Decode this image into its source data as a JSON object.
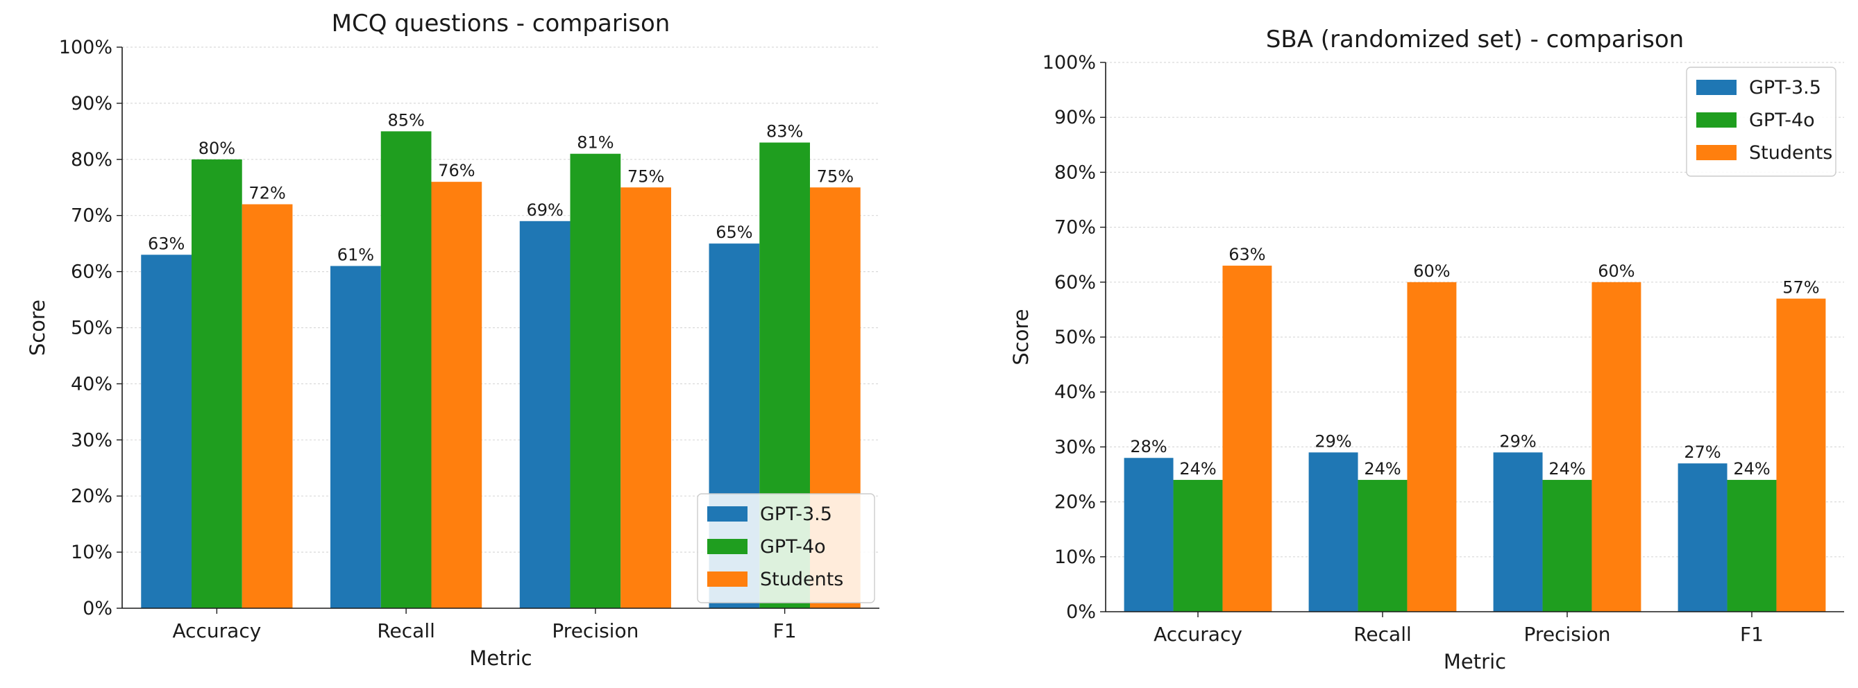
{
  "chart_data": [
    {
      "type": "bar",
      "title": "MCQ questions - comparison",
      "xlabel": "Metric",
      "ylabel": "Score",
      "categories": [
        "Accuracy",
        "Recall",
        "Precision",
        "F1"
      ],
      "series": [
        {
          "name": "GPT-3.5",
          "color": "#1f77b4",
          "values": [
            63,
            61,
            69,
            65
          ],
          "labels": [
            "63%",
            "61%",
            "69%",
            "65%"
          ]
        },
        {
          "name": "GPT-4o",
          "color": "#1f9e1f",
          "values": [
            80,
            85,
            81,
            83
          ],
          "labels": [
            "80%",
            "85%",
            "81%",
            "83%"
          ]
        },
        {
          "name": "Students",
          "color": "#ff7f0e",
          "values": [
            72,
            76,
            75,
            75
          ],
          "labels": [
            "72%",
            "76%",
            "75%",
            "75%"
          ]
        }
      ],
      "ylim": [
        0,
        100
      ],
      "yticks": [
        "0%",
        "10%",
        "20%",
        "30%",
        "40%",
        "50%",
        "60%",
        "70%",
        "80%",
        "90%",
        "100%"
      ],
      "grid": true,
      "legend_position": "bottom-right"
    },
    {
      "type": "bar",
      "title": "SBA (randomized set) - comparison",
      "xlabel": "Metric",
      "ylabel": "Score",
      "categories": [
        "Accuracy",
        "Recall",
        "Precision",
        "F1"
      ],
      "series": [
        {
          "name": "GPT-3.5",
          "color": "#1f77b4",
          "values": [
            28,
            29,
            29,
            27
          ],
          "labels": [
            "28%",
            "29%",
            "29%",
            "27%"
          ]
        },
        {
          "name": "GPT-4o",
          "color": "#1f9e1f",
          "values": [
            24,
            24,
            24,
            24
          ],
          "labels": [
            "24%",
            "24%",
            "24%",
            "24%"
          ]
        },
        {
          "name": "Students",
          "color": "#ff7f0e",
          "values": [
            63,
            60,
            60,
            57
          ],
          "labels": [
            "63%",
            "60%",
            "60%",
            "57%"
          ]
        }
      ],
      "ylim": [
        0,
        100
      ],
      "yticks": [
        "0%",
        "10%",
        "20%",
        "30%",
        "40%",
        "50%",
        "60%",
        "70%",
        "80%",
        "90%",
        "100%"
      ],
      "grid": true,
      "legend_position": "top-right"
    }
  ]
}
